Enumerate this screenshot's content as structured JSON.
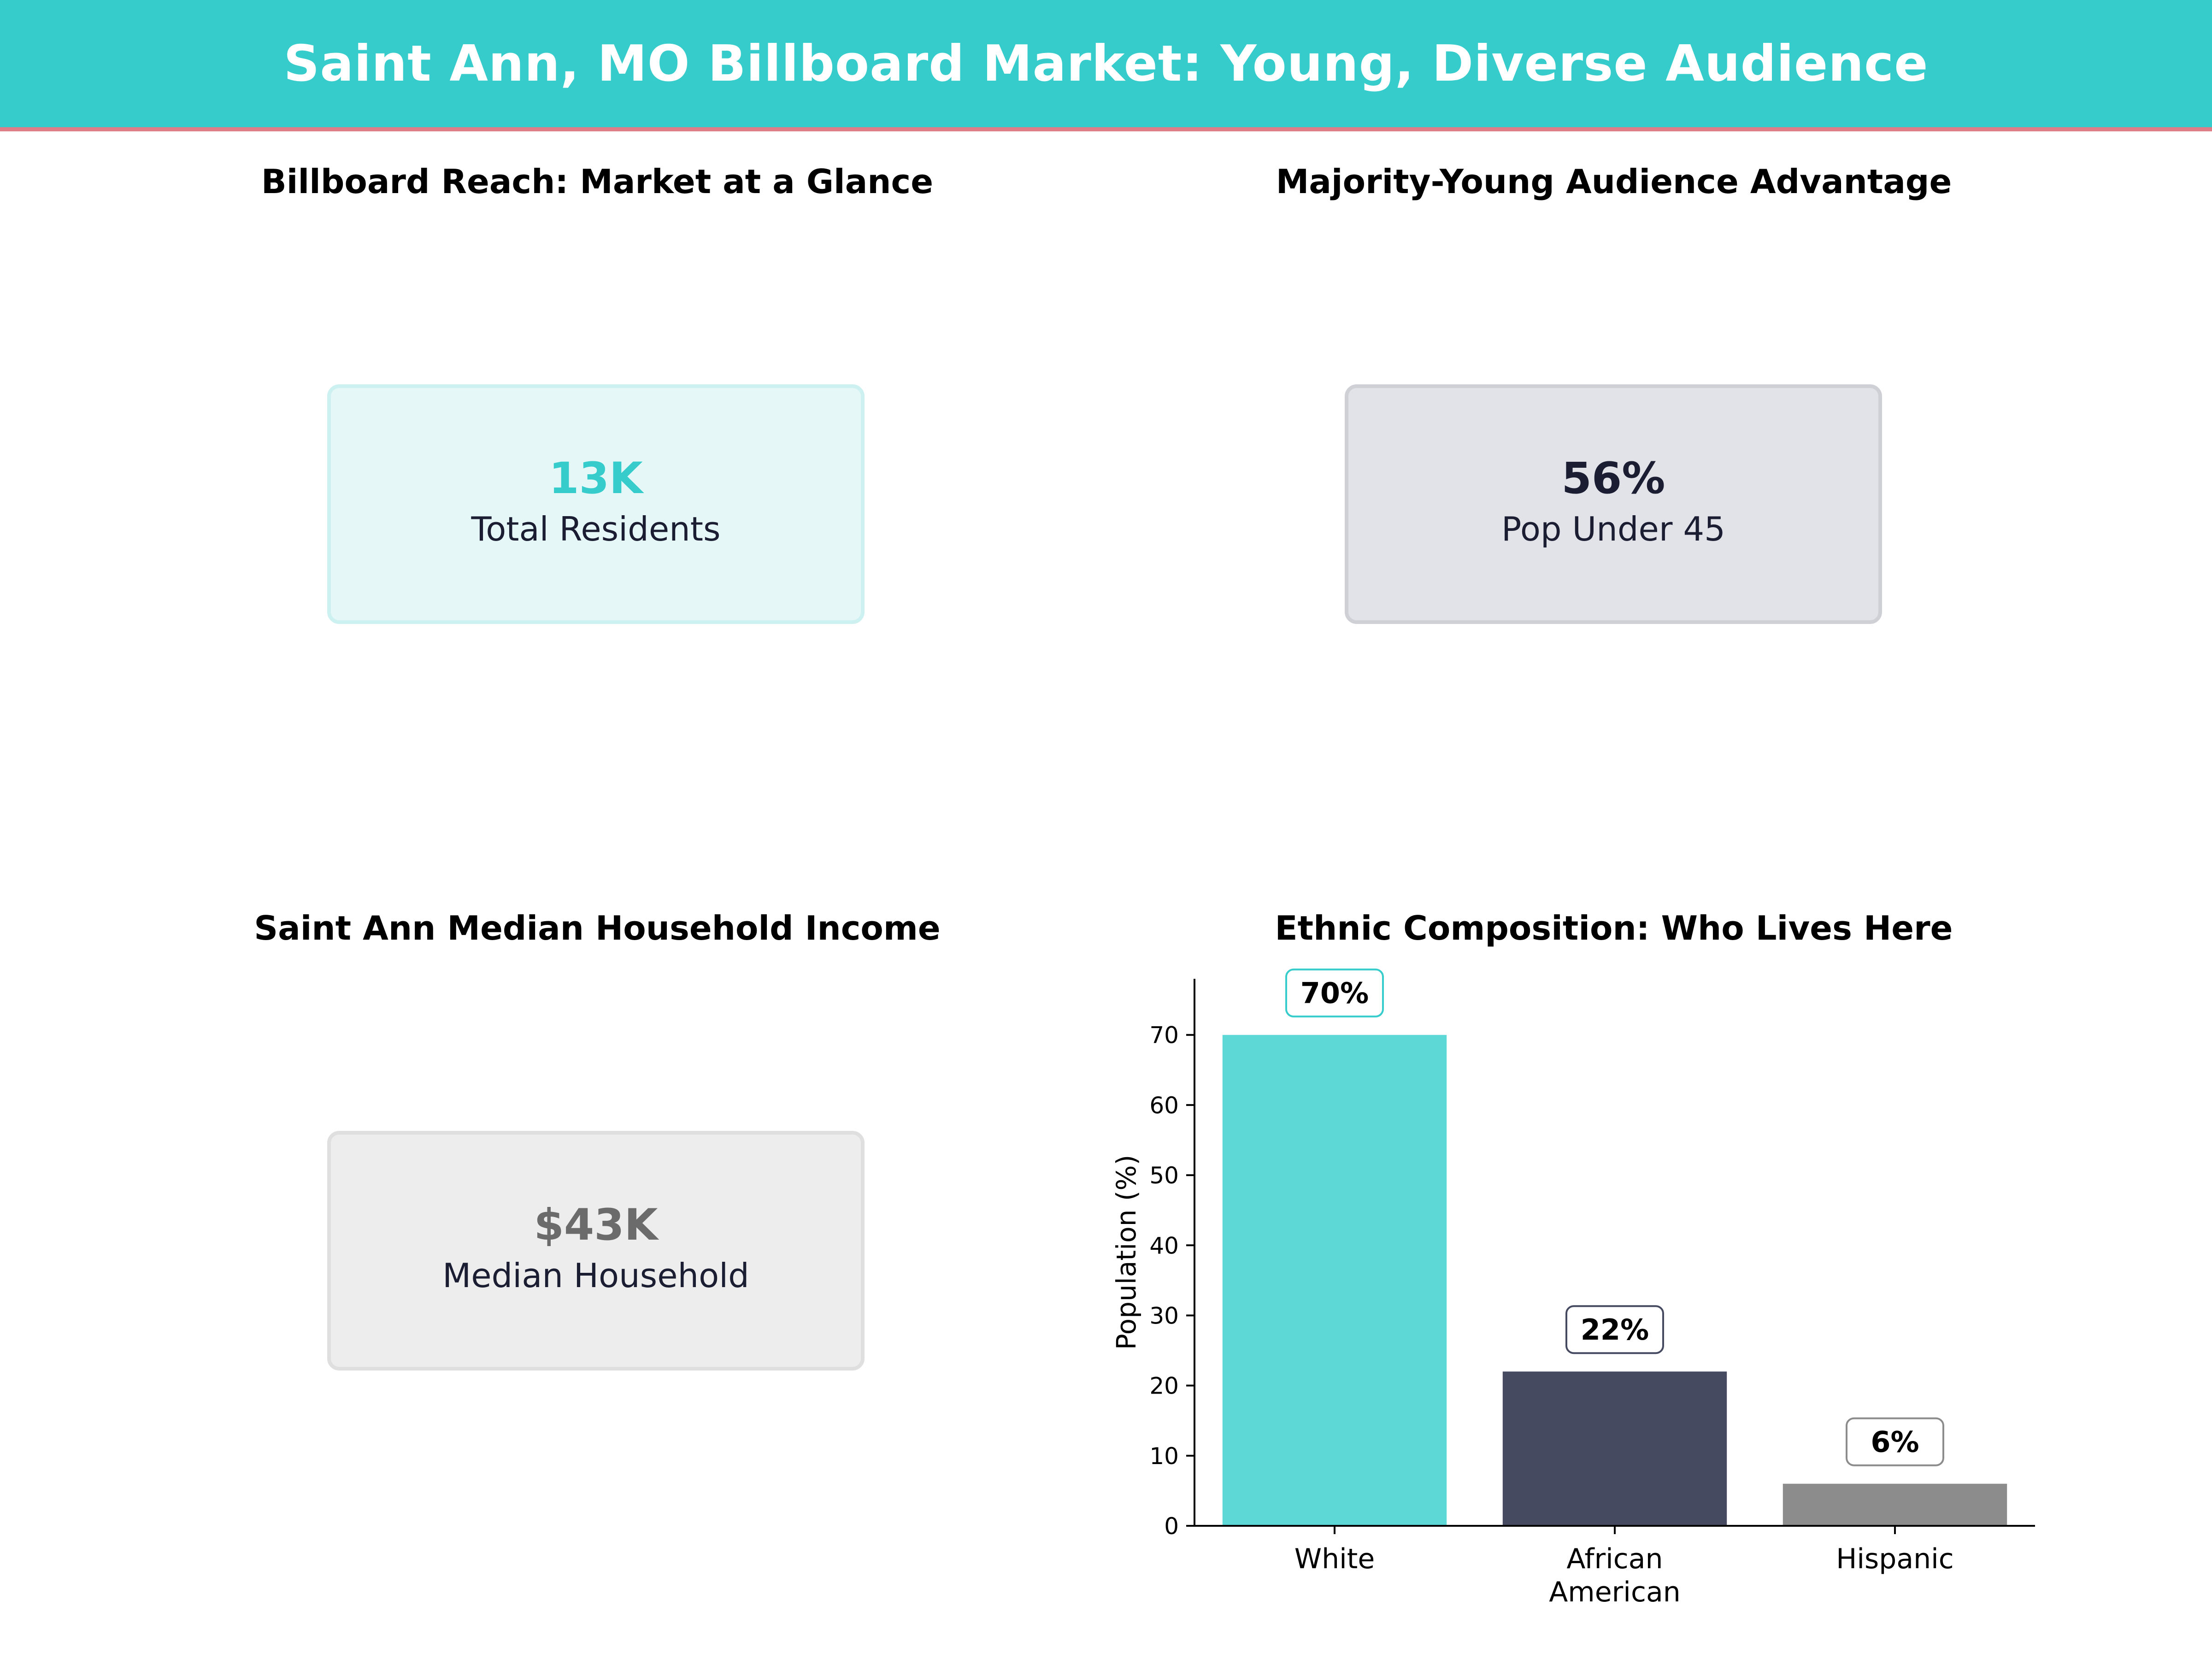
{
  "banner": {
    "title": "Saint Ann, MO Billboard Market: Young, Diverse Audience"
  },
  "panels": {
    "reach": {
      "title": "Billboard Reach: Market at a Glance",
      "value": "13K",
      "label": "Total Residents"
    },
    "young": {
      "title": "Majority-Young Audience Advantage",
      "value": "56%",
      "label": "Pop Under 45"
    },
    "income": {
      "title": "Saint Ann Median Household Income",
      "value": "$43K",
      "label": "Median Household"
    },
    "ethnic": {
      "title": "Ethnic Composition: Who Lives Here"
    }
  },
  "colors": {
    "accent": "#36cccc",
    "banner_underline": "#e07e87",
    "bar_white": "#5dd8d6",
    "bar_african_american": "#454a61",
    "bar_hispanic": "#8c8c8c",
    "label_border_white": "#36cccc",
    "label_border_african_american": "#454a61",
    "label_border_hispanic": "#8c8c8c"
  },
  "chart_data": {
    "type": "bar",
    "title": "Ethnic Composition: Who Lives Here",
    "categories": [
      [
        "White"
      ],
      [
        "African",
        "American"
      ],
      [
        "Hispanic"
      ]
    ],
    "values": [
      70,
      22,
      6
    ],
    "data_labels": [
      "70%",
      "22%",
      "6%"
    ],
    "xlabel": "",
    "ylabel": "Population (%)",
    "ylim": [
      0,
      78
    ],
    "yticks": [
      0,
      10,
      20,
      30,
      40,
      50,
      60,
      70
    ],
    "grid": false
  }
}
